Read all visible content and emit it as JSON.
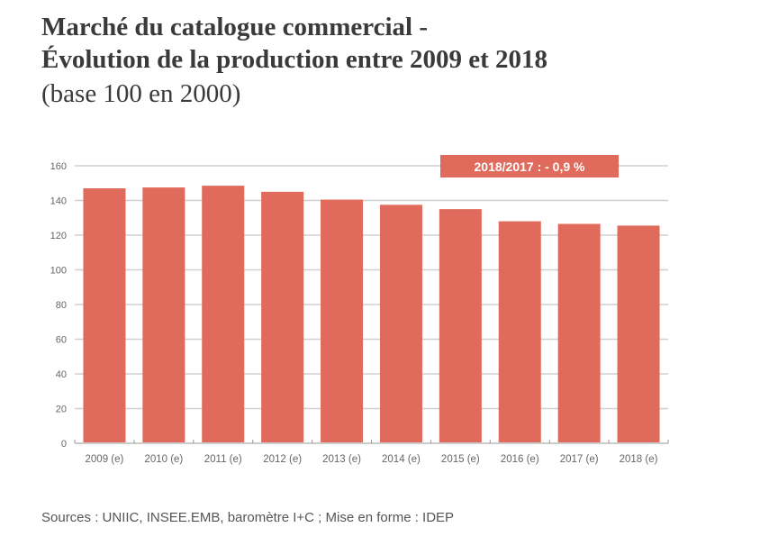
{
  "chart_data": {
    "type": "bar",
    "title": "Marché du catalogue commercial - Évolution de la production entre 2009 et 2018",
    "title_lines": [
      "Marché du catalogue commercial -",
      "Évolution de la production entre 2009 et 2018"
    ],
    "subtitle": "(base 100 en 2000)",
    "categories": [
      "2009 (e)",
      "2010 (e)",
      "2011 (e)",
      "2012 (e)",
      "2013 (e)",
      "2014 (e)",
      "2015 (e)",
      "2016 (e)",
      "2017 (e)",
      "2018 (e)"
    ],
    "values": [
      147,
      147.5,
      148.5,
      145,
      140.5,
      137.5,
      135,
      128,
      126.5,
      125.5
    ],
    "ylim": [
      0,
      160
    ],
    "yticks": [
      0,
      20,
      40,
      60,
      80,
      100,
      120,
      140,
      160
    ],
    "grid": true,
    "annotation": "2018/2017 : - 0,9 %",
    "source": "Sources : UNIIC, INSEE.EMB, baromètre I+C ; Mise en forme : IDEP",
    "colors": {
      "bar": "#e06a5b",
      "grid": "#d0d0d0",
      "annotation_bg": "#e06a5b"
    }
  }
}
